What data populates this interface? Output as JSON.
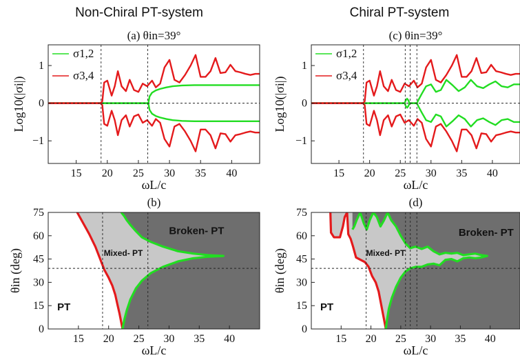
{
  "column_titles": [
    "Non-Chiral PT-system",
    "Chiral PT-system"
  ],
  "colors": {
    "green": "#22dd22",
    "red": "#e41a1c",
    "dark_region": "#6e6e6e",
    "mixed_region": "#c8c8c8",
    "white_region": "#ffffff"
  },
  "chart_data": [
    {
      "id": "a",
      "type": "line",
      "title": "(a) θin=39°",
      "xlabel": "ωL/c",
      "ylabel": "Log10(|σi|)",
      "xlim": [
        10.5,
        44.5
      ],
      "ylim": [
        -1.6,
        1.55
      ],
      "xticks": [
        15,
        20,
        25,
        30,
        35,
        40
      ],
      "yticks": [
        -1,
        0,
        1
      ],
      "legend_position": "top-left",
      "series": [
        {
          "name": "σ1,2",
          "color": "#22dd22",
          "x": [
            10.5,
            26.6,
            26.8,
            27.2,
            27.8,
            28.5,
            29.5,
            30.5,
            32,
            34,
            36,
            38,
            40,
            42,
            44.5
          ],
          "y": [
            0,
            0,
            0.18,
            0.28,
            0.34,
            0.38,
            0.42,
            0.45,
            0.47,
            0.48,
            0.48,
            0.48,
            0.48,
            0.48,
            0.48
          ]
        },
        {
          "name": "",
          "color": "#22dd22",
          "x": [
            10.5,
            26.6,
            26.8,
            27.2,
            27.8,
            28.5,
            29.5,
            30.5,
            32,
            34,
            36,
            38,
            40,
            42,
            44.5
          ],
          "y": [
            0,
            0,
            -0.18,
            -0.28,
            -0.34,
            -0.38,
            -0.42,
            -0.45,
            -0.47,
            -0.48,
            -0.48,
            -0.48,
            -0.48,
            -0.48,
            -0.48
          ]
        },
        {
          "name": "σ3,4",
          "color": "#e41a1c",
          "x": [
            10.5,
            18.9,
            19.2,
            19.5,
            20.0,
            20.7,
            21.2,
            21.7,
            22.3,
            23.0,
            23.6,
            24.3,
            25.0,
            25.7,
            26.4,
            27.2,
            27.8,
            28.5,
            29.2,
            30.0,
            30.8,
            31.6,
            32.5,
            33.4,
            34.2,
            35.0,
            35.8,
            36.6,
            37.4,
            38.2,
            39.0,
            39.8,
            40.6,
            41.4,
            42.2,
            43.0,
            43.8,
            44.5
          ],
          "y": [
            0,
            0,
            0.05,
            0.55,
            0.6,
            0.2,
            0.45,
            0.85,
            0.45,
            0.32,
            0.62,
            0.35,
            0.3,
            0.52,
            0.45,
            0.6,
            0.42,
            0.52,
            0.95,
            1.15,
            0.62,
            0.55,
            0.75,
            1.0,
            1.28,
            0.7,
            0.7,
            0.85,
            1.2,
            0.8,
            0.82,
            1.02,
            0.85,
            0.82,
            0.78,
            0.75,
            0.78,
            0.78
          ]
        },
        {
          "name": "",
          "color": "#e41a1c",
          "x": [
            10.5,
            18.9,
            19.2,
            19.5,
            20.0,
            20.7,
            21.2,
            21.7,
            22.3,
            23.0,
            23.6,
            24.3,
            25.0,
            25.7,
            26.4,
            27.2,
            27.8,
            28.5,
            29.2,
            30.0,
            30.8,
            31.6,
            32.5,
            33.4,
            34.2,
            35.0,
            35.8,
            36.6,
            37.4,
            38.2,
            39.0,
            39.8,
            40.6,
            41.4,
            42.2,
            43.0,
            43.8,
            44.5
          ],
          "y": [
            0,
            0,
            -0.05,
            -0.55,
            -0.6,
            -0.2,
            -0.45,
            -0.85,
            -0.45,
            -0.32,
            -0.62,
            -0.35,
            -0.3,
            -0.52,
            -0.45,
            -0.6,
            -0.42,
            -0.52,
            -0.95,
            -1.15,
            -0.62,
            -0.55,
            -0.75,
            -1.0,
            -1.28,
            -0.7,
            -0.7,
            -0.85,
            -1.2,
            -0.8,
            -0.82,
            -1.02,
            -0.85,
            -0.82,
            -0.78,
            -0.75,
            -0.78,
            -0.78
          ]
        }
      ],
      "vlines": [
        19,
        26.5
      ],
      "hlines": [
        0
      ]
    },
    {
      "id": "c",
      "type": "line",
      "title": "(c) θin=39°",
      "xlabel": "ωL/c",
      "ylabel": "Log10(|σi|)",
      "xlim": [
        10.5,
        44.5
      ],
      "ylim": [
        -1.6,
        1.55
      ],
      "xticks": [
        15,
        20,
        25,
        30,
        35,
        40
      ],
      "yticks": [
        -1,
        0,
        1
      ],
      "legend_position": "top-left",
      "series": [
        {
          "name": "σ1,2",
          "color": "#22dd22",
          "x": [
            10.5,
            25.7,
            25.9,
            26.1,
            26.3,
            26.5,
            26.7,
            27.7,
            28.0,
            28.5,
            29.2,
            30.0,
            30.8,
            31.6,
            32.5,
            33.5,
            34.5,
            35.5,
            36.5,
            37.5,
            38.5,
            39.5,
            40.5,
            41.5,
            42.5,
            43.5,
            44.5
          ],
          "y": [
            0,
            0,
            0.08,
            0.12,
            0.08,
            0,
            0,
            0,
            0.1,
            0.25,
            0.45,
            0.5,
            0.3,
            0.35,
            0.62,
            0.48,
            0.32,
            0.42,
            0.62,
            0.45,
            0.4,
            0.5,
            0.58,
            0.45,
            0.42,
            0.5,
            0.5
          ]
        },
        {
          "name": "",
          "color": "#22dd22",
          "x": [
            10.5,
            25.7,
            25.9,
            26.1,
            26.3,
            26.5,
            26.7,
            27.7,
            28.0,
            28.5,
            29.2,
            30.0,
            30.8,
            31.6,
            32.5,
            33.5,
            34.5,
            35.5,
            36.5,
            37.5,
            38.5,
            39.5,
            40.5,
            41.5,
            42.5,
            43.5,
            44.5
          ],
          "y": [
            0,
            0,
            -0.08,
            -0.12,
            -0.08,
            0,
            0,
            0,
            -0.1,
            -0.25,
            -0.45,
            -0.5,
            -0.3,
            -0.35,
            -0.62,
            -0.48,
            -0.32,
            -0.42,
            -0.62,
            -0.45,
            -0.4,
            -0.5,
            -0.58,
            -0.45,
            -0.42,
            -0.5,
            -0.5
          ]
        },
        {
          "name": "σ3,4",
          "color": "#e41a1c",
          "x": [
            10.5,
            18.9,
            19.2,
            19.5,
            20.0,
            20.7,
            21.2,
            21.7,
            22.3,
            23.0,
            23.6,
            24.3,
            25.0,
            25.7,
            26.4,
            27.2,
            27.8,
            28.5,
            29.2,
            30.0,
            30.8,
            31.6,
            32.5,
            33.4,
            34.2,
            35.0,
            35.8,
            36.6,
            37.4,
            38.2,
            39.0,
            39.8,
            40.6,
            41.4,
            42.2,
            43.0,
            43.8,
            44.5
          ],
          "y": [
            0,
            0,
            0.05,
            0.55,
            0.6,
            0.2,
            0.45,
            0.85,
            0.45,
            0.32,
            0.62,
            0.35,
            0.3,
            0.52,
            0.45,
            0.6,
            0.42,
            0.52,
            0.95,
            1.15,
            0.62,
            0.55,
            0.75,
            1.0,
            1.28,
            0.7,
            0.7,
            0.85,
            1.2,
            0.8,
            0.82,
            1.02,
            0.85,
            0.82,
            0.78,
            0.75,
            0.78,
            0.78
          ]
        },
        {
          "name": "",
          "color": "#e41a1c",
          "x": [
            10.5,
            18.9,
            19.2,
            19.5,
            20.0,
            20.7,
            21.2,
            21.7,
            22.3,
            23.0,
            23.6,
            24.3,
            25.0,
            25.7,
            26.4,
            27.2,
            27.8,
            28.5,
            29.2,
            30.0,
            30.8,
            31.6,
            32.5,
            33.4,
            34.2,
            35.0,
            35.8,
            36.6,
            37.4,
            38.2,
            39.0,
            39.8,
            40.6,
            41.4,
            42.2,
            43.0,
            43.8,
            44.5
          ],
          "y": [
            0,
            0,
            -0.05,
            -0.55,
            -0.6,
            -0.2,
            -0.45,
            -0.85,
            -0.45,
            -0.32,
            -0.62,
            -0.35,
            -0.3,
            -0.52,
            -0.45,
            -0.6,
            -0.42,
            -0.52,
            -0.95,
            -1.15,
            -0.62,
            -0.55,
            -0.75,
            -1.0,
            -1.28,
            -0.7,
            -0.7,
            -0.85,
            -1.2,
            -0.8,
            -0.82,
            -1.02,
            -0.85,
            -0.82,
            -0.78,
            -0.75,
            -0.78,
            -0.78
          ]
        }
      ],
      "vlines": [
        19,
        25.8,
        26.6,
        27.7
      ],
      "hlines": [
        0
      ]
    },
    {
      "id": "b",
      "type": "area",
      "title": "(b)",
      "xlabel": "ωL/c",
      "ylabel": "θin (deg)",
      "xlim": [
        10,
        45
      ],
      "ylim": [
        0,
        75
      ],
      "xticks": [
        15,
        20,
        25,
        30,
        35,
        40
      ],
      "yticks": [
        0,
        15,
        30,
        45,
        60,
        75
      ],
      "regions": {
        "left": "PT",
        "middle": "Mixed- PT",
        "right": "Broken- PT"
      },
      "red_boundary": {
        "x": [
          14.8,
          15.8,
          16.8,
          17.8,
          18.6,
          19.3,
          20.0,
          20.6,
          21.1,
          21.5,
          21.8,
          22.1,
          22.3
        ],
        "y": [
          75,
          68,
          61,
          53,
          45,
          38,
          33,
          28,
          22,
          15,
          10,
          4,
          0
        ]
      },
      "green_boundary": {
        "x": [
          22.3,
          22.6,
          23.0,
          23.6,
          24.5,
          25.5,
          27.0,
          29.0,
          31.5,
          34.0,
          36.5,
          39.0,
          36.5,
          34.0,
          31.5,
          29.0,
          27.0,
          25.5,
          24.5,
          23.6,
          23.0,
          22.6,
          22.3,
          22.1
        ],
        "y": [
          0,
          6,
          12,
          19,
          26,
          31,
          36,
          40,
          43.5,
          45.5,
          46.5,
          47,
          47.5,
          48.5,
          50,
          53,
          56,
          59,
          63,
          67,
          70,
          72.5,
          74,
          75
        ]
      },
      "vlines": [
        19,
        26.5
      ],
      "hlines": [
        39
      ]
    },
    {
      "id": "d",
      "type": "area",
      "title": "(d)",
      "xlabel": "ωL/c",
      "ylabel": "θin (deg)",
      "xlim": [
        10,
        45
      ],
      "ylim": [
        0,
        75
      ],
      "xticks": [
        15,
        20,
        25,
        30,
        35,
        40
      ],
      "yticks": [
        0,
        15,
        30,
        45,
        60,
        75
      ],
      "regions": {
        "left": "PT",
        "middle": "Mixed- PT",
        "right": "Broken- PT"
      },
      "red_boundary": {
        "x": [
          13.2,
          13.3,
          13.8,
          14.8,
          15.3,
          15.6,
          16.0,
          16.2,
          16.6,
          17.0,
          17.5,
          18.0,
          18.5,
          19.0,
          19.6,
          20.2,
          20.8,
          21.3,
          21.7,
          22.0,
          22.3,
          22.5
        ],
        "y": [
          75,
          62,
          59,
          59,
          66,
          72,
          75,
          61,
          58,
          53,
          46,
          45,
          44,
          43,
          40,
          34,
          30,
          24,
          16,
          10,
          4,
          0
        ]
      },
      "green_boundary": {
        "x": [
          22.5,
          22.7,
          23.0,
          23.5,
          24.2,
          25.0,
          25.8,
          26.6,
          27.5,
          28.5,
          29.5,
          30.5,
          31.5,
          32.5,
          33.5,
          34.5,
          35.5,
          36.5,
          37.5,
          38.5,
          39.5,
          38.5,
          37.5,
          36.5,
          35.5,
          34.5,
          33.5,
          32.5,
          31.5,
          30.5,
          29.5,
          28.5,
          27.5,
          26.6,
          25.8,
          25.0,
          24.2,
          23.4,
          22.8,
          22.2,
          21.6,
          21.0,
          20.4,
          19.8,
          19.3,
          18.8,
          18.2,
          17.6,
          17.2,
          16.9
        ],
        "y": [
          0,
          6,
          13,
          20,
          27,
          33,
          37,
          39,
          40,
          40,
          41.5,
          42,
          41,
          44.5,
          45,
          43.5,
          45.5,
          46,
          45.5,
          46,
          47,
          47.5,
          48.5,
          48,
          47.5,
          49,
          48.5,
          49,
          48,
          50,
          53,
          51.5,
          53,
          52,
          55,
          60,
          66,
          70,
          75,
          70,
          66,
          72,
          75,
          70,
          64,
          68,
          75,
          70,
          66,
          64
        ]
      },
      "vlines": [
        19.2,
        25.8,
        26.6,
        27.7
      ],
      "hlines": [
        39
      ]
    }
  ]
}
